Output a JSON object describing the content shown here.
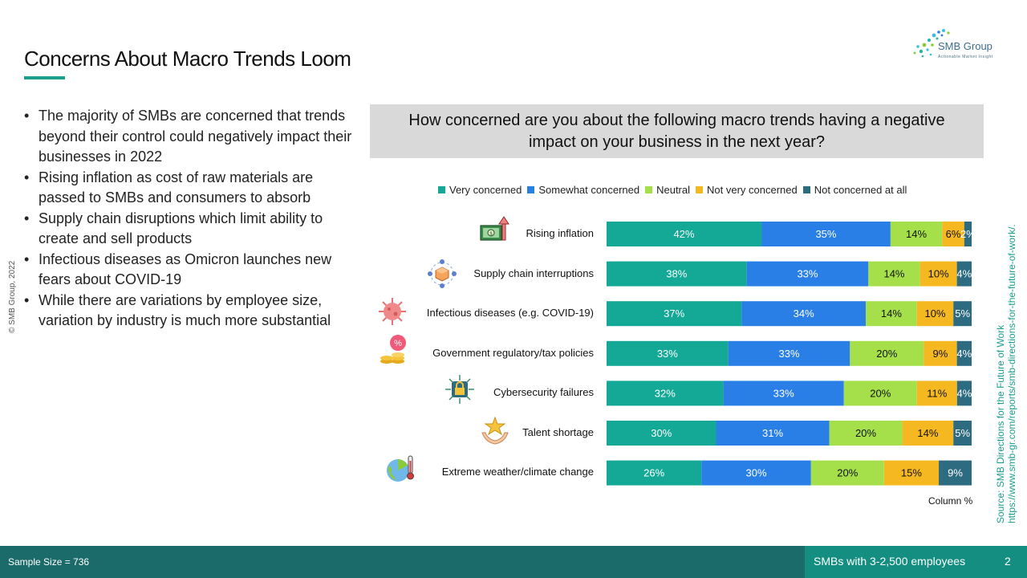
{
  "slide": {
    "title": "Concerns About Macro Trends Loom",
    "copyright": "© SMB Group, 2022",
    "logo_name": "SMB Group",
    "logo_tagline": "Actionable Market Insight",
    "bullets": [
      "The majority of SMBs are concerned that trends beyond their control could negatively impact their businesses in 2022",
      "Rising inflation as cost of raw materials are passed to SMBs and consumers to absorb",
      "Supply chain disruptions which limit ability to create and sell products",
      "Infectious diseases as Omicron launches new fears about COVID-19",
      "While there are variations by employee size, variation by industry is much more substantial"
    ],
    "source_line1": "Source:  SMB Directions for the Future of Work",
    "source_line2": "https://www.smb-gr.com/reports/smb-directions-for-the-future-of-work/.",
    "footer": {
      "sample_size": "Sample Size = 736",
      "segment": "SMBs with 3-2,500 employees",
      "page_number": "2"
    }
  },
  "colors": {
    "very_concerned": "#13a996",
    "somewhat_concerned": "#2a7fe6",
    "neutral": "#a5e04a",
    "not_very_concerned": "#f6b820",
    "not_concerned": "#2d6b80",
    "accent": "#1a9e8e",
    "footer_bg": "#1c6b6b"
  },
  "chart_data": {
    "type": "bar",
    "orientation": "horizontal",
    "stacked": true,
    "title": "How concerned are you about the following macro trends having a negative impact on your business in the next year?",
    "note": "Column %",
    "legend_position": "top",
    "categories": [
      "Rising inflation",
      "Supply chain interruptions",
      "Infectious diseases (e.g. COVID-19)",
      "Government regulatory/tax policies",
      "Cybersecurity failures",
      "Talent shortage",
      "Extreme weather/climate change"
    ],
    "category_icons": [
      "money-up-icon",
      "supply-chain-icon",
      "virus-icon",
      "tax-coins-icon",
      "cyber-lock-icon",
      "talent-star-icon",
      "climate-thermometer-icon"
    ],
    "series": [
      {
        "name": "Very concerned",
        "color": "#13a996",
        "values": [
          42,
          38,
          37,
          33,
          32,
          30,
          26
        ]
      },
      {
        "name": "Somewhat concerned",
        "color": "#2a7fe6",
        "values": [
          35,
          33,
          34,
          33,
          33,
          31,
          30
        ]
      },
      {
        "name": "Neutral",
        "color": "#a5e04a",
        "values": [
          14,
          14,
          14,
          20,
          20,
          20,
          20
        ]
      },
      {
        "name": "Not very concerned",
        "color": "#f6b820",
        "values": [
          6,
          10,
          10,
          9,
          11,
          14,
          15
        ]
      },
      {
        "name": "Not concerned at all",
        "color": "#2d6b80",
        "values": [
          2,
          4,
          5,
          4,
          4,
          5,
          9
        ]
      }
    ],
    "unit": "%"
  }
}
